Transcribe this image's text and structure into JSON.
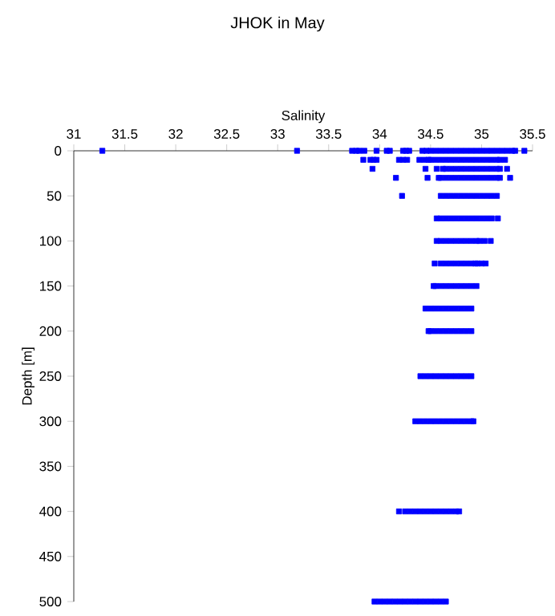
{
  "chart_data": {
    "type": "scatter",
    "title": "JHOK in May",
    "xlabel": "Salinity",
    "ylabel": "Depth [m]",
    "color": "#0000ff",
    "marker": "square",
    "xlim": [
      31,
      35.5
    ],
    "xticks": [
      31,
      31.5,
      32,
      32.5,
      33,
      33.5,
      34,
      34.5,
      35,
      35.5
    ],
    "ylim": [
      500,
      0
    ],
    "yticks": [
      0,
      50,
      100,
      150,
      200,
      250,
      300,
      350,
      400,
      450,
      500
    ],
    "x": [
      31.28,
      33.19,
      33.73,
      33.77,
      33.8,
      33.85,
      33.97,
      34.07,
      34.1,
      34.23,
      34.26,
      34.29,
      34.42,
      34.46,
      34.5,
      34.55,
      34.6,
      34.65,
      34.7,
      34.75,
      34.8,
      34.85,
      34.9,
      34.95,
      35,
      35.05,
      35.1,
      35.15,
      35.2,
      35.25,
      35.3,
      35.33,
      35.42,
      33.84,
      33.91,
      33.94,
      33.97,
      34.19,
      34.23,
      34.27,
      34.39,
      34.44,
      34.48,
      34.5,
      34.55,
      34.6,
      34.65,
      34.7,
      34.75,
      34.8,
      34.85,
      34.9,
      34.95,
      35,
      35.05,
      35.1,
      35.15,
      35.18,
      35.23,
      33.93,
      34.45,
      34.56,
      34.62,
      34.65,
      34.7,
      34.75,
      34.8,
      34.85,
      34.9,
      34.95,
      35,
      35.05,
      35.1,
      35.15,
      35.18,
      35.25,
      34.16,
      34.47,
      34.58,
      34.6,
      34.65,
      34.7,
      34.75,
      34.8,
      34.85,
      34.9,
      34.95,
      35,
      35.05,
      35.1,
      35.15,
      35.18,
      35.28,
      34.22,
      34.6,
      34.65,
      34.7,
      34.75,
      34.8,
      34.85,
      34.9,
      34.95,
      35,
      35.05,
      35.1,
      35.15,
      34.56,
      34.6,
      34.65,
      34.7,
      34.75,
      34.8,
      34.85,
      34.9,
      34.95,
      35,
      35.05,
      35.1,
      35.16,
      34.56,
      34.6,
      34.65,
      34.7,
      34.75,
      34.8,
      34.85,
      34.9,
      34.95,
      34.98,
      35.03,
      35.09,
      34.54,
      34.6,
      34.65,
      34.7,
      34.75,
      34.8,
      34.85,
      34.9,
      34.94,
      34.96,
      35,
      35.04,
      34.53,
      34.55,
      34.6,
      34.65,
      34.7,
      34.75,
      34.8,
      34.85,
      34.9,
      34.95,
      34.45,
      34.5,
      34.55,
      34.6,
      34.65,
      34.7,
      34.75,
      34.8,
      34.85,
      34.9,
      34.48,
      34.5,
      34.55,
      34.6,
      34.65,
      34.7,
      34.75,
      34.8,
      34.85,
      34.9,
      34.4,
      34.45,
      34.5,
      34.55,
      34.6,
      34.65,
      34.7,
      34.75,
      34.8,
      34.85,
      34.9,
      34.35,
      34.4,
      34.45,
      34.5,
      34.55,
      34.6,
      34.65,
      34.7,
      34.75,
      34.8,
      34.85,
      34.9,
      34.92,
      34.19,
      34.25,
      34.3,
      34.35,
      34.4,
      34.45,
      34.5,
      34.55,
      34.6,
      34.65,
      34.7,
      34.75,
      34.78,
      33.95,
      34,
      34.05,
      34.1,
      34.15,
      34.2,
      34.25,
      34.3,
      34.35,
      34.4,
      34.45,
      34.5,
      34.55,
      34.6,
      34.65
    ],
    "values": [
      0,
      0,
      0,
      0,
      0,
      0,
      0,
      0,
      0,
      0,
      0,
      0,
      0,
      0,
      0,
      0,
      0,
      0,
      0,
      0,
      0,
      0,
      0,
      0,
      0,
      0,
      0,
      0,
      0,
      0,
      0,
      0,
      0,
      10,
      10,
      10,
      10,
      10,
      10,
      10,
      10,
      10,
      10,
      10,
      10,
      10,
      10,
      10,
      10,
      10,
      10,
      10,
      10,
      10,
      10,
      10,
      10,
      10,
      10,
      20,
      20,
      20,
      20,
      20,
      20,
      20,
      20,
      20,
      20,
      20,
      20,
      20,
      20,
      20,
      20,
      20,
      30,
      30,
      30,
      30,
      30,
      30,
      30,
      30,
      30,
      30,
      30,
      30,
      30,
      30,
      30,
      30,
      30,
      50,
      50,
      50,
      50,
      50,
      50,
      50,
      50,
      50,
      50,
      50,
      50,
      50,
      75,
      75,
      75,
      75,
      75,
      75,
      75,
      75,
      75,
      75,
      75,
      75,
      75,
      100,
      100,
      100,
      100,
      100,
      100,
      100,
      100,
      100,
      100,
      100,
      100,
      125,
      125,
      125,
      125,
      125,
      125,
      125,
      125,
      125,
      125,
      125,
      125,
      150,
      150,
      150,
      150,
      150,
      150,
      150,
      150,
      150,
      150,
      175,
      175,
      175,
      175,
      175,
      175,
      175,
      175,
      175,
      175,
      200,
      200,
      200,
      200,
      200,
      200,
      200,
      200,
      200,
      200,
      250,
      250,
      250,
      250,
      250,
      250,
      250,
      250,
      250,
      250,
      250,
      300,
      300,
      300,
      300,
      300,
      300,
      300,
      300,
      300,
      300,
      300,
      300,
      300,
      400,
      400,
      400,
      400,
      400,
      400,
      400,
      400,
      400,
      400,
      400,
      400,
      400,
      500,
      500,
      500,
      500,
      500,
      500,
      500,
      500,
      500,
      500,
      500,
      500,
      500,
      500,
      500
    ]
  }
}
